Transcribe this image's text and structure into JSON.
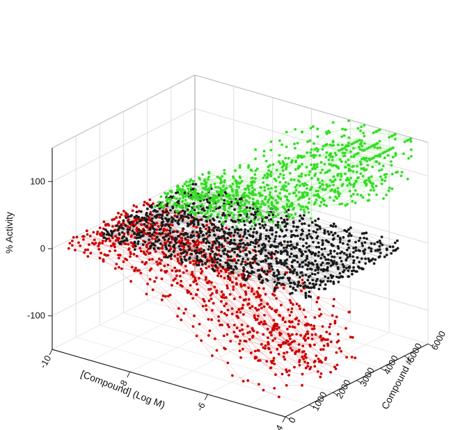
{
  "chart_data": {
    "type": "scatter",
    "projection": "3d",
    "title": "",
    "xlabel": "[Compound] (Log M)",
    "ylabel": "Compound #",
    "zlabel": "% Activity",
    "x_ticks": [
      "-10",
      "-8",
      "-6",
      "-4"
    ],
    "y_ticks": [
      "0",
      "1000",
      "2000",
      "3000",
      "4000",
      "5000",
      "6000"
    ],
    "z_ticks": [
      "-100",
      "0",
      "100"
    ],
    "xlim": [
      -10,
      -4
    ],
    "ylim": [
      0,
      6000
    ],
    "zlim": [
      -150,
      150
    ],
    "grid": true,
    "legend": "none",
    "series": [
      {
        "color": "#cc0000",
        "description": "inhibitor concentration-response points",
        "x": [
          -9.5,
          -9.0,
          -8.5,
          -8.0,
          -7.5,
          -7.0,
          -6.5,
          -6.0,
          -5.5,
          -5.0,
          -4.5
        ],
        "z": [
          10,
          8,
          5,
          2,
          -5,
          -15,
          -35,
          -60,
          -80,
          -95,
          -100
        ],
        "y_range": [
          0,
          3600
        ]
      },
      {
        "color": "#1a1a1a",
        "description": "inactive compound points",
        "x": [
          -9.5,
          -9.0,
          -8.5,
          -8.0,
          -7.5,
          -7.0,
          -6.5,
          -6.0,
          -5.5,
          -5.0,
          -4.5
        ],
        "z": [
          0,
          0,
          0,
          0,
          0,
          0,
          0,
          0,
          0,
          0,
          0
        ],
        "y_range": [
          1500,
          5500
        ]
      },
      {
        "color": "#33dd22",
        "description": "activator concentration-response points",
        "x": [
          -9.0,
          -8.5,
          -8.0,
          -7.5,
          -7.0,
          -6.5,
          -6.0,
          -5.5,
          -5.0,
          -4.5
        ],
        "z": [
          5,
          10,
          20,
          35,
          55,
          80,
          105,
          125,
          140,
          150
        ],
        "y_range": [
          3600,
          6000
        ]
      }
    ]
  }
}
